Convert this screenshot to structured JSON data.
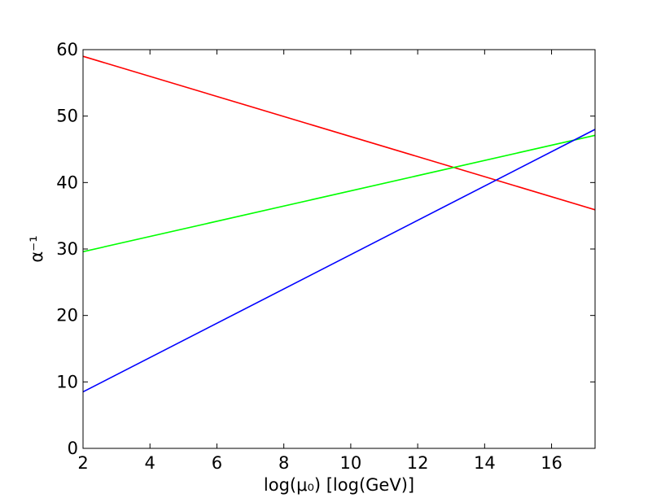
{
  "chart_data": {
    "type": "line",
    "xlabel": "log(μ₀) [log(GeV)]",
    "ylabel": "α⁻¹",
    "xlim": [
      2,
      17.3
    ],
    "ylim": [
      0,
      60
    ],
    "x_ticks": [
      2,
      4,
      6,
      8,
      10,
      12,
      14,
      16
    ],
    "y_ticks": [
      0,
      10,
      20,
      30,
      40,
      50,
      60
    ],
    "grid": false,
    "legend": "none",
    "series": [
      {
        "color": "#ff0000",
        "x": [
          2,
          17.3
        ],
        "y": [
          59.0,
          35.9
        ]
      },
      {
        "color": "#00ff00",
        "x": [
          2,
          17.3
        ],
        "y": [
          29.6,
          47.1
        ]
      },
      {
        "color": "#0000ff",
        "x": [
          2,
          17.3
        ],
        "y": [
          8.5,
          48.0
        ]
      }
    ]
  }
}
